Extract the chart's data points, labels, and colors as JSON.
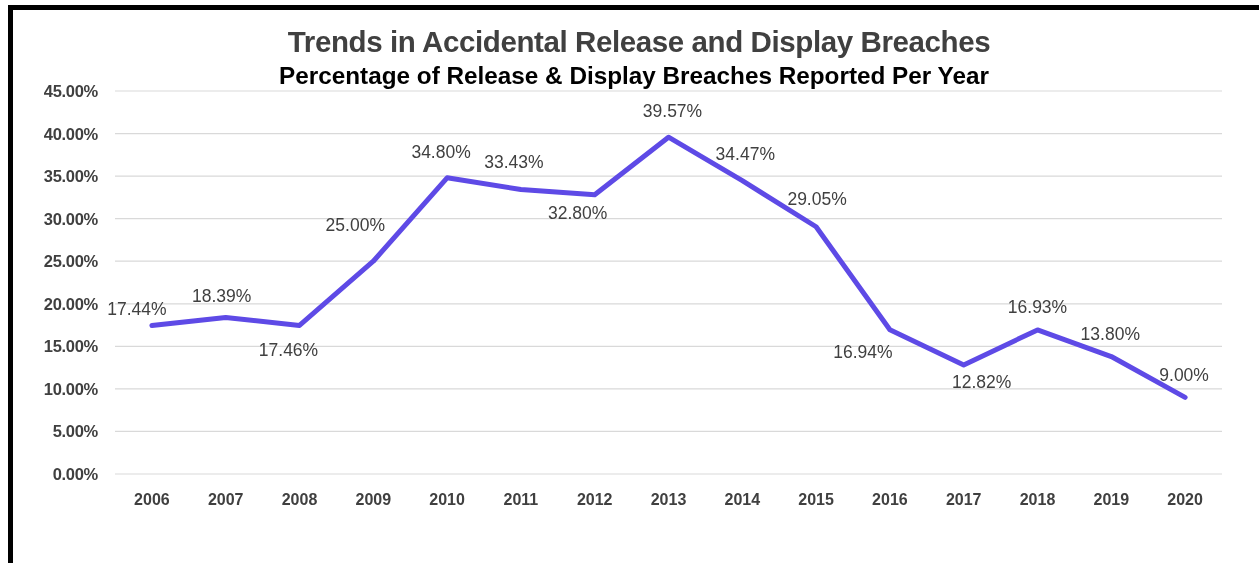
{
  "chart_data": {
    "type": "line",
    "title": "Trends in Accidental Release and Display Breaches",
    "subtitle": "Percentage of Release & Display Breaches Reported Per Year",
    "categories": [
      "2006",
      "2007",
      "2008",
      "2009",
      "2010",
      "2011",
      "2012",
      "2013",
      "2014",
      "2015",
      "2016",
      "2017",
      "2018",
      "2019",
      "2020"
    ],
    "series": [
      {
        "color": "#5e4ae6",
        "values": [
          17.44,
          18.39,
          17.46,
          25.0,
          34.8,
          33.43,
          32.8,
          39.57,
          34.47,
          29.05,
          16.94,
          12.82,
          16.93,
          13.8,
          9.0
        ],
        "value_labels": [
          "17.44%",
          "18.39%",
          "17.46%",
          "25.00%",
          "34.80%",
          "33.43%",
          "32.80%",
          "39.57%",
          "34.47%",
          "29.05%",
          "16.94%",
          "12.82%",
          "16.93%",
          "13.80%",
          "9.00%"
        ]
      }
    ],
    "ylim": [
      0,
      45
    ],
    "yticks": [
      {
        "value": 0,
        "label": "0.00%"
      },
      {
        "value": 5,
        "label": "5.00%"
      },
      {
        "value": 10,
        "label": "10.00%"
      },
      {
        "value": 15,
        "label": "15.00%"
      },
      {
        "value": 20,
        "label": "20.00%"
      },
      {
        "value": 25,
        "label": "25.00%"
      },
      {
        "value": 30,
        "label": "30.00%"
      },
      {
        "value": 35,
        "label": "35.00%"
      },
      {
        "value": 40,
        "label": "40.00%"
      },
      {
        "value": 45,
        "label": "45.00%"
      }
    ],
    "grid": "y",
    "marker": "none"
  }
}
